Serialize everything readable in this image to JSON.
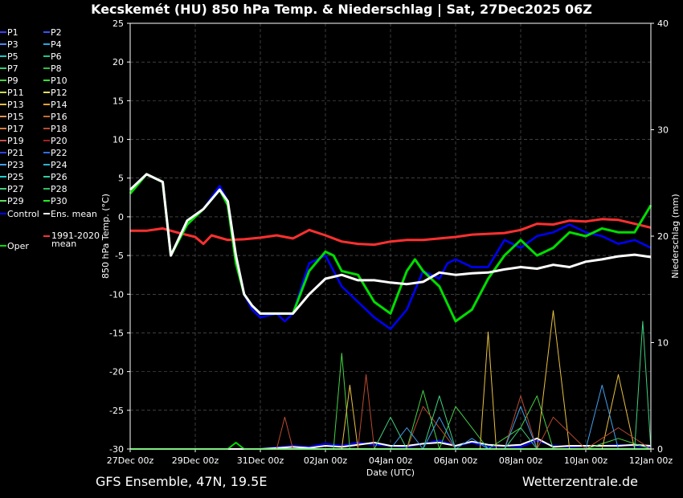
{
  "title": "Kecskemét  (HU)  850 hPa Temp. & Niederschlag | Sat, 27Dec2025 06Z",
  "footer_left": "GFS Ensemble, 47N, 19.5E",
  "footer_right": "Wetterzentrale.de",
  "colors": {
    "background": "#000000",
    "ens_mean": "#ffffff",
    "oper": "#00dd00",
    "control": "#0000ff",
    "climate_mean": "#ff3030"
  },
  "chart_data": {
    "type": "line",
    "title": "Kecskemét  (HU)  850 hPa Temp. & Niederschlag | Sat, 27Dec2025 06Z",
    "xlabel": "Date (UTC)",
    "ylabel": "850 hPa Temp. (°C)",
    "y2label": "Niederschlag (mm)",
    "ylim": [
      -30,
      25
    ],
    "y2lim": [
      0,
      40
    ],
    "yticks": [
      25,
      20,
      15,
      10,
      5,
      0,
      -5,
      -10,
      -15,
      -20,
      -25,
      -30
    ],
    "y2ticks": [
      40,
      30,
      20,
      10,
      0
    ],
    "xticks": [
      "27Dec 00z",
      "29Dec 00z",
      "31Dec 00z",
      "02Jan 00z",
      "04Jan 00z",
      "06Jan 00z",
      "08Jan 00z",
      "10Jan 00z",
      "12Jan 00z"
    ],
    "x_start_hours": 0,
    "x_end_hours": 384,
    "x_step_hours": 6,
    "grid": true,
    "legend_position": "left-outside",
    "legend": [
      {
        "name": "P1",
        "color": "#3b3bff"
      },
      {
        "name": "P2",
        "color": "#3355ff"
      },
      {
        "name": "P3",
        "color": "#4488ff"
      },
      {
        "name": "P4",
        "color": "#22a9e8"
      },
      {
        "name": "P5",
        "color": "#20c6c6"
      },
      {
        "name": "P6",
        "color": "#18c890"
      },
      {
        "name": "P7",
        "color": "#2ecf7a"
      },
      {
        "name": "P8",
        "color": "#30c040"
      },
      {
        "name": "P9",
        "color": "#44d244"
      },
      {
        "name": "P10",
        "color": "#2ee62e"
      },
      {
        "name": "P11",
        "color": "#c8e040"
      },
      {
        "name": "P12",
        "color": "#e0e060"
      },
      {
        "name": "P13",
        "color": "#e8c040"
      },
      {
        "name": "P14",
        "color": "#e8a030"
      },
      {
        "name": "P15",
        "color": "#e89050"
      },
      {
        "name": "P16",
        "color": "#c86a30"
      },
      {
        "name": "P17",
        "color": "#d87a40"
      },
      {
        "name": "P18",
        "color": "#b84a30"
      },
      {
        "name": "P19",
        "color": "#c85050"
      },
      {
        "name": "P20",
        "color": "#a82020"
      },
      {
        "name": "P21",
        "color": "#3040e0"
      },
      {
        "name": "P22",
        "color": "#3070e0"
      },
      {
        "name": "P23",
        "color": "#40a0f0"
      },
      {
        "name": "P24",
        "color": "#30b0d0"
      },
      {
        "name": "P25",
        "color": "#20d0d0"
      },
      {
        "name": "P26",
        "color": "#30d0a0"
      },
      {
        "name": "P27",
        "color": "#40d080"
      },
      {
        "name": "P28",
        "color": "#30c060"
      },
      {
        "name": "P29",
        "color": "#60e060"
      },
      {
        "name": "P30",
        "color": "#20f020"
      },
      {
        "name": "Control",
        "color": "#0000ff"
      },
      {
        "name": "Ens. mean",
        "color": "#ffffff"
      },
      {
        "name": "1991-2020 mean",
        "color": "#ff3030"
      },
      {
        "name": "Oper",
        "color": "#00dd00"
      }
    ],
    "series": [
      {
        "name": "Control",
        "x": [
          0,
          12,
          24,
          30,
          42,
          54,
          66,
          72,
          78,
          84,
          90,
          96,
          108,
          114,
          120,
          132,
          144,
          156,
          168,
          180,
          192,
          204,
          216,
          228,
          234,
          240,
          252,
          264,
          276,
          288,
          300,
          312,
          324,
          336,
          348,
          360,
          372,
          384
        ],
        "y": [
          3.5,
          5.5,
          4.5,
          -5,
          -0.5,
          1,
          4,
          2,
          -5,
          -10,
          -12,
          -13,
          -12.5,
          -13.5,
          -12.5,
          -6,
          -5,
          -9,
          -11,
          -13,
          -14.5,
          -12,
          -7,
          -8,
          -6,
          -5.5,
          -6.5,
          -6.5,
          -3,
          -4,
          -2.5,
          -2,
          -1,
          -2,
          -2.5,
          -3.5,
          -3,
          -4
        ]
      },
      {
        "name": "Oper",
        "x": [
          0,
          12,
          24,
          30,
          42,
          54,
          66,
          72,
          78,
          84,
          90,
          96,
          108,
          120,
          132,
          144,
          150,
          156,
          168,
          180,
          192,
          204,
          210,
          216,
          228,
          240,
          252,
          264,
          276,
          288,
          300,
          312,
          324,
          336,
          348,
          360,
          372,
          384
        ],
        "y": [
          3,
          5.5,
          4.5,
          -5,
          -1,
          1,
          3.5,
          1.5,
          -6,
          -10,
          -11.5,
          -12.5,
          -12.5,
          -12.5,
          -7,
          -4.5,
          -5,
          -7,
          -7.5,
          -11,
          -12.5,
          -7,
          -5.5,
          -7,
          -9,
          -13.5,
          -12,
          -8,
          -5,
          -3,
          -5,
          -4,
          -2,
          -2.5,
          -1.5,
          -2,
          -2,
          1.5
        ]
      },
      {
        "name": "Ens. mean",
        "x": [
          0,
          12,
          24,
          30,
          42,
          54,
          66,
          72,
          78,
          84,
          90,
          96,
          108,
          120,
          132,
          144,
          156,
          168,
          180,
          192,
          204,
          216,
          228,
          240,
          252,
          264,
          276,
          288,
          300,
          312,
          324,
          336,
          348,
          360,
          372,
          384
        ],
        "y": [
          3.5,
          5.5,
          4.5,
          -5,
          -0.5,
          1,
          3.5,
          2,
          -5,
          -10,
          -11.5,
          -12.5,
          -12.5,
          -12.5,
          -10,
          -8,
          -7.5,
          -8.2,
          -8.2,
          -8.5,
          -8.7,
          -8.4,
          -7.2,
          -7.5,
          -7.3,
          -7.2,
          -6.8,
          -6.5,
          -6.7,
          -6.2,
          -6.5,
          -5.8,
          -5.5,
          -5.1,
          -4.9,
          -5.2
        ]
      },
      {
        "name": "1991-2020 mean",
        "x": [
          0,
          12,
          24,
          36,
          48,
          54,
          60,
          72,
          84,
          96,
          108,
          120,
          132,
          144,
          156,
          168,
          180,
          192,
          204,
          216,
          228,
          240,
          252,
          264,
          276,
          288,
          300,
          312,
          324,
          336,
          348,
          360,
          372,
          384
        ],
        "y": [
          -1.8,
          -1.8,
          -1.5,
          -2.1,
          -2.6,
          -3.5,
          -2.4,
          -3.0,
          -2.9,
          -2.7,
          -2.4,
          -2.8,
          -1.7,
          -2.4,
          -3.2,
          -3.5,
          -3.6,
          -3.2,
          -3.0,
          -3.0,
          -2.8,
          -2.6,
          -2.3,
          -2.2,
          -2.1,
          -1.7,
          -0.9,
          -1.0,
          -0.5,
          -0.6,
          -0.3,
          -0.4,
          -0.9,
          -1.4
        ]
      }
    ],
    "precipitation": [
      {
        "name": "Control",
        "x": [
          0,
          72,
          96,
          120,
          132,
          144,
          156,
          168,
          180,
          192,
          204,
          216,
          228,
          240,
          252,
          264,
          276,
          288,
          300,
          312,
          324,
          336,
          348,
          360,
          372,
          384
        ],
        "y": [
          0,
          0,
          0,
          0.3,
          0.2,
          0.5,
          0.3,
          0.6,
          0.4,
          0.3,
          0.2,
          0.5,
          0.8,
          0.3,
          0.6,
          0.2,
          0.3,
          0.2,
          0.8,
          0.3,
          0.2,
          0.3,
          0.3,
          0.4,
          0.3,
          0.2
        ]
      },
      {
        "name": "Ens. mean",
        "x": [
          0,
          72,
          96,
          108,
          120,
          132,
          144,
          156,
          168,
          180,
          192,
          204,
          216,
          228,
          240,
          252,
          264,
          276,
          288,
          300,
          312,
          324,
          336,
          348,
          360,
          372,
          384
        ],
        "y": [
          0,
          0,
          0,
          0.1,
          0.2,
          0.1,
          0.3,
          0.2,
          0.4,
          0.6,
          0.3,
          0.3,
          0.5,
          0.6,
          0.3,
          0.7,
          0.4,
          0.3,
          0.4,
          1,
          0.2,
          0.3,
          0.3,
          0.3,
          0.3,
          0.4,
          0.3
        ]
      },
      {
        "name": "Oper",
        "x": [
          0,
          72,
          78,
          84,
          96,
          120,
          144,
          168,
          192,
          216,
          240,
          264,
          288,
          312,
          336,
          360,
          384
        ],
        "y": [
          0,
          0,
          0.6,
          0,
          0,
          0,
          0,
          0,
          0,
          0,
          0,
          0,
          0,
          0,
          0,
          0,
          0
        ]
      },
      {
        "name": "P9",
        "x": [
          0,
          132,
          150,
          156,
          162,
          168,
          192,
          204,
          216,
          228,
          240,
          264,
          288,
          300,
          312,
          336,
          360,
          384
        ],
        "y": [
          0,
          0,
          0,
          9,
          0,
          0,
          0,
          0,
          5.5,
          0,
          4,
          0,
          2,
          5,
          0,
          0,
          1,
          0
        ]
      },
      {
        "name": "P13",
        "x": [
          0,
          144,
          156,
          162,
          168,
          192,
          216,
          240,
          258,
          264,
          270,
          288,
          300,
          312,
          324,
          336,
          348,
          360,
          372,
          384
        ],
        "y": [
          0,
          0,
          0,
          6,
          0,
          0,
          0,
          0,
          0,
          11,
          0,
          0,
          0,
          13,
          0,
          0,
          0,
          7,
          0,
          0
        ]
      },
      {
        "name": "P18",
        "x": [
          0,
          108,
          114,
          120,
          150,
          168,
          174,
          180,
          192,
          204,
          216,
          240,
          276,
          288,
          300,
          312,
          336,
          360,
          384
        ],
        "y": [
          0,
          0,
          3,
          0,
          0,
          0,
          7,
          0,
          0,
          0,
          4,
          0,
          0,
          5,
          0,
          3,
          0,
          2,
          0
        ]
      },
      {
        "name": "P27",
        "x": [
          0,
          120,
          168,
          180,
          192,
          204,
          216,
          228,
          240,
          264,
          276,
          288,
          300,
          312,
          324,
          336,
          348,
          360,
          372,
          378,
          384
        ],
        "y": [
          0,
          0,
          0,
          0,
          3,
          0,
          0,
          5,
          0,
          0,
          0,
          2,
          0,
          0,
          0,
          0,
          0,
          0,
          0,
          12,
          0
        ]
      },
      {
        "name": "P23",
        "x": [
          0,
          180,
          192,
          204,
          216,
          228,
          240,
          252,
          264,
          276,
          288,
          300,
          312,
          324,
          336,
          348,
          360,
          372,
          384
        ],
        "y": [
          0,
          0,
          0,
          2,
          0,
          3,
          0,
          1,
          0,
          0,
          4,
          0,
          0,
          0,
          0,
          6,
          0,
          0,
          0
        ]
      }
    ]
  }
}
